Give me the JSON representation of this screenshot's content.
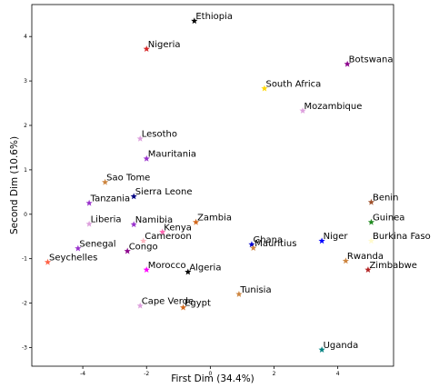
{
  "chart_data": {
    "type": "scatter",
    "xlabel": "First Dim (34.4%)",
    "ylabel": "Second Dim (10.6%)",
    "xlim": [
      -5.6,
      5.75
    ],
    "ylim": [
      -3.42,
      4.72
    ],
    "xticks": [
      -4,
      -2,
      0,
      2,
      4
    ],
    "yticks": [
      -3,
      -2,
      -1,
      0,
      1,
      2,
      3,
      4
    ],
    "grid": false,
    "marker": "star",
    "points": [
      {
        "label": "Ethiopia",
        "x": -0.5,
        "y": 4.35,
        "color": "#000000"
      },
      {
        "label": "Nigeria",
        "x": -2.0,
        "y": 3.72,
        "color": "#d62728"
      },
      {
        "label": "Botswana",
        "x": 4.3,
        "y": 3.38,
        "color": "#8b008b"
      },
      {
        "label": "South Africa",
        "x": 1.7,
        "y": 2.83,
        "color": "#ffd700"
      },
      {
        "label": "Mozambique",
        "x": 2.9,
        "y": 2.33,
        "color": "#dda0dd"
      },
      {
        "label": "Lesotho",
        "x": -2.2,
        "y": 1.7,
        "color": "#dda0dd"
      },
      {
        "label": "Mauritania",
        "x": -2.0,
        "y": 1.25,
        "color": "#9932cc"
      },
      {
        "label": "Sao Tome",
        "x": -3.3,
        "y": 0.72,
        "color": "#cd853f"
      },
      {
        "label": "Sierra Leone",
        "x": -2.4,
        "y": 0.4,
        "color": "#000080"
      },
      {
        "label": "Tanzania",
        "x": -3.8,
        "y": 0.25,
        "color": "#9932cc"
      },
      {
        "label": "Liberia",
        "x": -3.8,
        "y": -0.22,
        "color": "#dda0dd"
      },
      {
        "label": "Namibia",
        "x": -2.4,
        "y": -0.23,
        "color": "#9932cc"
      },
      {
        "label": "Zambia",
        "x": -0.45,
        "y": -0.18,
        "color": "#d2691e"
      },
      {
        "label": "Kenya",
        "x": -1.5,
        "y": -0.4,
        "color": "#ff69b4"
      },
      {
        "label": "Cameroon",
        "x": -2.1,
        "y": -0.6,
        "color": "#ffb6c1"
      },
      {
        "label": "Senegal",
        "x": -4.15,
        "y": -0.77,
        "color": "#9932cc"
      },
      {
        "label": "Congo",
        "x": -2.6,
        "y": -0.83,
        "color": "#8b008b"
      },
      {
        "label": "Seychelles",
        "x": -5.1,
        "y": -1.08,
        "color": "#ff6347"
      },
      {
        "label": "Morocco",
        "x": -2.0,
        "y": -1.25,
        "color": "#ff00ff"
      },
      {
        "label": "Algeria",
        "x": -0.7,
        "y": -1.3,
        "color": "#000000"
      },
      {
        "label": "Ghana",
        "x": 1.3,
        "y": -0.68,
        "color": "#0000cd"
      },
      {
        "label": "Mauritius",
        "x": 1.35,
        "y": -0.76,
        "color": "#cd853f"
      },
      {
        "label": "Niger",
        "x": 3.5,
        "y": -0.6,
        "color": "#0000ff"
      },
      {
        "label": "Benin",
        "x": 5.05,
        "y": 0.27,
        "color": "#a0522d"
      },
      {
        "label": "Guinea",
        "x": 5.05,
        "y": -0.18,
        "color": "#228b22"
      },
      {
        "label": "Burkina Faso",
        "x": 5.05,
        "y": -0.6,
        "color": "#fffacd"
      },
      {
        "label": "Rwanda",
        "x": 4.25,
        "y": -1.05,
        "color": "#cd853f"
      },
      {
        "label": "Zimbabwe",
        "x": 4.95,
        "y": -1.25,
        "color": "#b22222"
      },
      {
        "label": "Tunisia",
        "x": 0.9,
        "y": -1.8,
        "color": "#cd853f"
      },
      {
        "label": "Cape Verde",
        "x": -2.2,
        "y": -2.06,
        "color": "#dda0dd"
      },
      {
        "label": "Egypt",
        "x": -0.85,
        "y": -2.1,
        "color": "#d2691e"
      },
      {
        "label": "Uganda",
        "x": 3.5,
        "y": -3.05,
        "color": "#008080"
      }
    ]
  }
}
